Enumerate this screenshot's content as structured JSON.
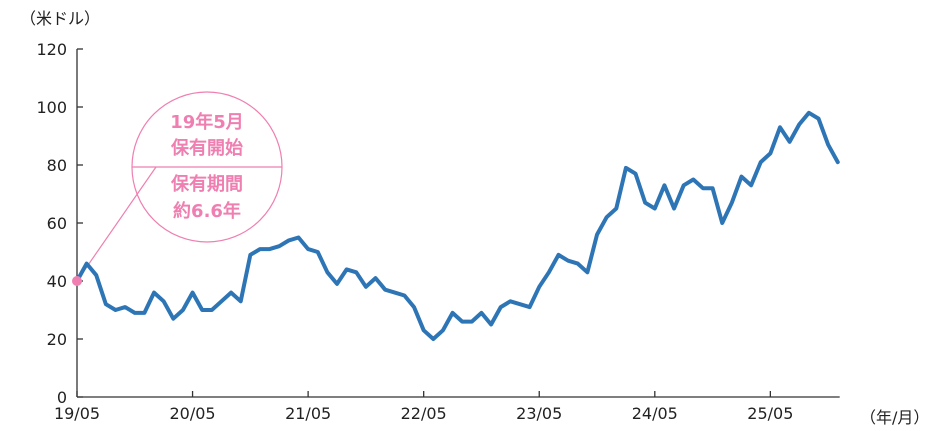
{
  "chart_data": {
    "type": "line",
    "y_unit_label": "（米ドル）",
    "x_unit_label": "（年/月）",
    "xlabel": "",
    "ylabel": "",
    "ylim": [
      0,
      120
    ],
    "y_ticks": [
      0,
      20,
      40,
      60,
      80,
      100,
      120
    ],
    "y_tick_labels": [
      "0",
      "20",
      "40",
      "60",
      "80",
      "100",
      "120"
    ],
    "x_ticks": [
      0,
      12,
      24,
      36,
      48,
      60,
      72
    ],
    "x_tick_labels": [
      "19/05",
      "20/05",
      "21/05",
      "22/05",
      "23/05",
      "24/05",
      "25/05"
    ],
    "x_range_months": [
      0,
      79.2
    ],
    "grid": false,
    "line_color": "#2e75b6",
    "marker_color": "#ef7fb0",
    "series": [
      {
        "values": [
          40,
          46,
          42,
          32,
          30,
          31,
          29,
          29,
          36,
          33,
          27,
          30,
          36,
          30,
          30,
          33,
          36,
          33,
          49,
          51,
          51,
          52,
          54,
          55,
          51,
          50,
          43,
          39,
          44,
          43,
          38,
          41,
          37,
          36,
          35,
          31,
          23,
          20,
          23,
          29,
          26,
          26,
          29,
          25,
          31,
          33,
          32,
          31,
          38,
          43,
          49,
          47,
          46,
          43,
          56,
          62,
          65,
          79,
          77,
          67,
          65,
          73,
          65,
          73,
          75,
          72,
          72,
          60,
          67,
          76,
          73,
          81,
          84,
          93,
          88,
          94,
          98,
          96,
          87,
          81
        ]
      }
    ],
    "annotation": {
      "top_text_lines": [
        "19年5月",
        "保有開始"
      ],
      "bottom_text_lines": [
        "保有期間",
        "約6.6年"
      ]
    }
  }
}
